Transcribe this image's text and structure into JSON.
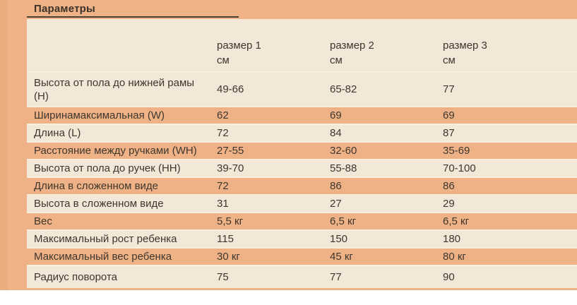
{
  "page": {
    "title": "Параметры",
    "colors": {
      "background_orange": "#efb286",
      "row_cream": "#f3e7d7",
      "left_stripe": "#e9ad80",
      "separator": "#f8eedd",
      "title_rule": "#4c4138",
      "text": "#3e372e",
      "page_white": "#ffffff"
    }
  },
  "table": {
    "columns": [
      {
        "label": "размер 1",
        "unit": "см"
      },
      {
        "label": "размер 2",
        "unit": "см"
      },
      {
        "label": "размер 3",
        "unit": "см"
      }
    ],
    "rows": [
      {
        "param": "Высота от пола до нижней рамы (H)",
        "v1": "49-66",
        "v2": "65-82",
        "v3": "77"
      },
      {
        "param": "Ширинамаксимальная (W)",
        "v1": "62",
        "v2": "69",
        "v3": "69"
      },
      {
        "param": "Длина (L)",
        "v1": "72",
        "v2": "84",
        "v3": "87"
      },
      {
        "param": "Расстояние между ручками (WH)",
        "v1": "27-55",
        "v2": "32-60",
        "v3": "35-69"
      },
      {
        "param": "Высота от пола до ручек (HH)",
        "v1": "39-70",
        "v2": "55-88",
        "v3": "70-100"
      },
      {
        "param": "Длина в сложенном виде",
        "v1": "72",
        "v2": "86",
        "v3": "86"
      },
      {
        "param": "Высота в сложенном виде",
        "v1": "31",
        "v2": "27",
        "v3": "29"
      },
      {
        "param": "Вес",
        "v1": "5,5 кг",
        "v2": "6,5 кг",
        "v3": "6,5 кг"
      },
      {
        "param": "Максимальный рост ребенка",
        "v1": "115",
        "v2": "150",
        "v3": "180"
      },
      {
        "param": "Максимальный вес ребенка",
        "v1": "30 кг",
        "v2": "45 кг",
        "v3": "80 кг"
      },
      {
        "param": "Радиус поворота",
        "v1": "75",
        "v2": "77",
        "v3": "90"
      }
    ]
  }
}
